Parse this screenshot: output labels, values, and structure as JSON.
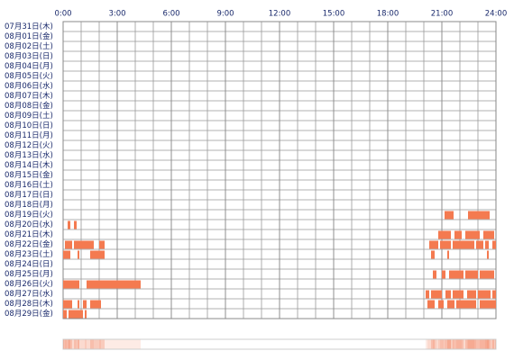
{
  "chart_data": {
    "type": "timeline",
    "color": "#f47a50",
    "grid": true,
    "xlim": [
      0,
      24
    ],
    "xticks": [
      {
        "value": 0,
        "label": "0:00"
      },
      {
        "value": 3,
        "label": "3:00"
      },
      {
        "value": 6,
        "label": "6:00"
      },
      {
        "value": 9,
        "label": "9:00"
      },
      {
        "value": 12,
        "label": "12:00"
      },
      {
        "value": 15,
        "label": "15:00"
      },
      {
        "value": 18,
        "label": "18:00"
      },
      {
        "value": 21,
        "label": "21:00"
      },
      {
        "value": 24,
        "label": "24:00"
      }
    ],
    "rows": [
      {
        "name": "07月31日(木)",
        "intervals": []
      },
      {
        "name": "08月01日(金)",
        "intervals": []
      },
      {
        "name": "08月02日(土)",
        "intervals": []
      },
      {
        "name": "08月03日(日)",
        "intervals": []
      },
      {
        "name": "08月04日(月)",
        "intervals": []
      },
      {
        "name": "08月05日(火)",
        "intervals": []
      },
      {
        "name": "08月06日(水)",
        "intervals": []
      },
      {
        "name": "08月07日(木)",
        "intervals": []
      },
      {
        "name": "08月08日(金)",
        "intervals": []
      },
      {
        "name": "08月09日(土)",
        "intervals": []
      },
      {
        "name": "08月10日(日)",
        "intervals": []
      },
      {
        "name": "08月11日(月)",
        "intervals": []
      },
      {
        "name": "08月12日(火)",
        "intervals": []
      },
      {
        "name": "08月13日(水)",
        "intervals": []
      },
      {
        "name": "08月14日(木)",
        "intervals": []
      },
      {
        "name": "08月15日(金)",
        "intervals": []
      },
      {
        "name": "08月16日(土)",
        "intervals": []
      },
      {
        "name": "08月17日(日)",
        "intervals": []
      },
      {
        "name": "08月18日(月)",
        "intervals": []
      },
      {
        "name": "08月19日(火)",
        "intervals": [
          [
            21.15,
            21.65
          ],
          [
            22.45,
            23.65
          ]
        ]
      },
      {
        "name": "08月20日(水)",
        "intervals": [
          [
            0.25,
            0.4
          ],
          [
            0.6,
            0.75
          ]
        ]
      },
      {
        "name": "08月21日(木)",
        "intervals": [
          [
            20.8,
            21.5
          ],
          [
            21.7,
            22.1
          ],
          [
            22.3,
            23.1
          ],
          [
            23.3,
            23.9
          ]
        ]
      },
      {
        "name": "08月22日(金)",
        "intervals": [
          [
            0.1,
            0.5
          ],
          [
            0.6,
            1.7
          ],
          [
            2.0,
            2.3
          ],
          [
            20.3,
            20.8
          ],
          [
            20.9,
            21.5
          ],
          [
            21.6,
            22.8
          ],
          [
            22.9,
            23.3
          ],
          [
            23.4,
            23.6
          ],
          [
            23.8,
            24
          ]
        ]
      },
      {
        "name": "08月23日(土)",
        "intervals": [
          [
            0.0,
            0.4
          ],
          [
            0.8,
            0.9
          ],
          [
            1.5,
            2.3
          ],
          [
            20.4,
            20.6
          ],
          [
            21.3,
            21.4
          ],
          [
            23.5,
            23.6
          ]
        ]
      },
      {
        "name": "08月24日(日)",
        "intervals": []
      },
      {
        "name": "08月25日(月)",
        "intervals": [
          [
            20.5,
            20.7
          ],
          [
            21.0,
            21.2
          ],
          [
            21.4,
            22.2
          ],
          [
            22.3,
            23.0
          ],
          [
            23.1,
            23.9
          ]
        ]
      },
      {
        "name": "08月26日(火)",
        "intervals": [
          [
            0.0,
            0.9
          ],
          [
            1.3,
            4.3
          ]
        ]
      },
      {
        "name": "08月27日(水)",
        "intervals": [
          [
            20.1,
            20.3
          ],
          [
            20.4,
            21.0
          ],
          [
            21.2,
            21.5
          ],
          [
            21.6,
            22.2
          ],
          [
            22.4,
            22.9
          ],
          [
            23.0,
            23.7
          ],
          [
            23.8,
            24
          ]
        ]
      },
      {
        "name": "08月28日(木)",
        "intervals": [
          [
            0.0,
            0.5
          ],
          [
            0.8,
            0.9
          ],
          [
            1.1,
            1.3
          ],
          [
            1.5,
            2.1
          ],
          [
            20.2,
            20.6
          ],
          [
            20.8,
            21.1
          ],
          [
            21.3,
            21.7
          ],
          [
            21.8,
            22.9
          ],
          [
            23.1,
            24
          ]
        ]
      },
      {
        "name": "08月29日(金)",
        "intervals": [
          [
            0.0,
            0.2
          ],
          [
            0.3,
            1.1
          ],
          [
            1.2,
            1.3
          ]
        ]
      }
    ]
  }
}
